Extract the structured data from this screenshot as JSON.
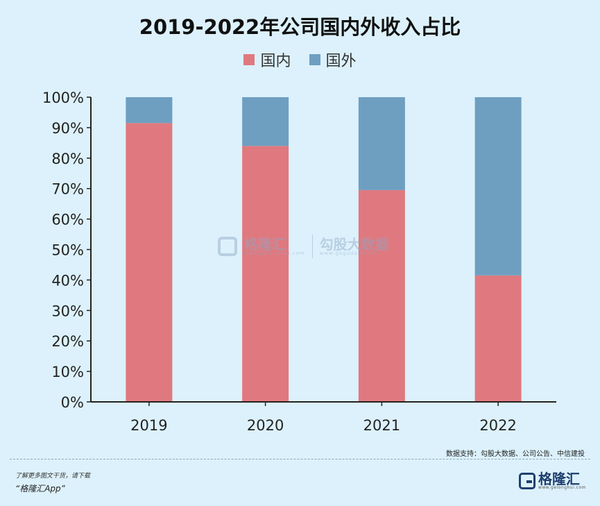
{
  "header": {
    "title": "2019-2022年公司国内外收入占比"
  },
  "chart_data": {
    "type": "bar",
    "stacked": true,
    "categories": [
      "2019",
      "2020",
      "2021",
      "2022"
    ],
    "series": [
      {
        "name": "国内",
        "color": "#df797f",
        "values": [
          91.5,
          84,
          69.5,
          41.5
        ]
      },
      {
        "name": "国外",
        "color": "#6e9fc1",
        "values": [
          8.5,
          16,
          30.5,
          58.5
        ]
      }
    ],
    "yticks": [
      "0%",
      "10%",
      "20%",
      "30%",
      "40%",
      "50%",
      "60%",
      "70%",
      "80%",
      "90%",
      "100%"
    ],
    "ylim": [
      0,
      100
    ],
    "legend": "top-center",
    "grid": false
  },
  "watermark": {
    "brand": "格隆汇",
    "brand_sub": "www.gelonghui.com",
    "partner": "勾股大数据",
    "partner_sub": "www.gogudata.com"
  },
  "source": "数据支持：勾股大数据、公司公告、中信建投",
  "footer": {
    "line1": "了解更多图文干货，请下载",
    "line2": "“格隆汇App”",
    "logo_text": "格隆汇",
    "logo_sub": "www.gelonghui.com"
  }
}
